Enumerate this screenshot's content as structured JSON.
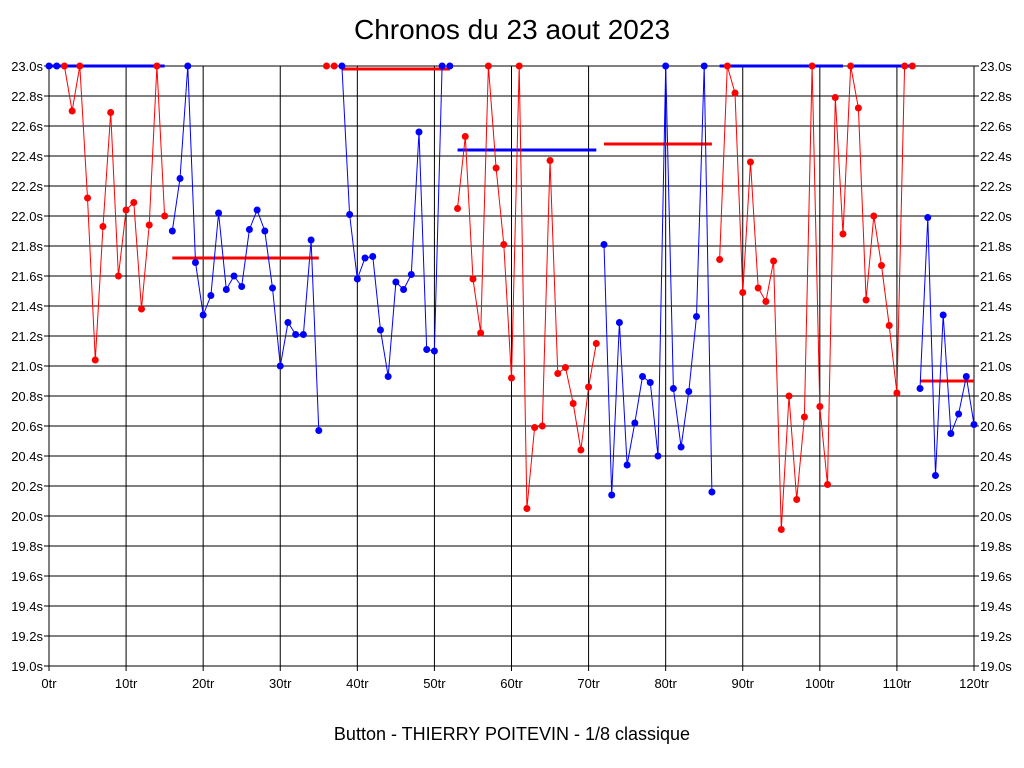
{
  "title": "Chronos du 23 aout 2023",
  "caption": "Button - THIERRY POITEVIN - 1/8 classique",
  "chart_data": {
    "type": "line",
    "xlim": [
      0,
      120
    ],
    "ylim": [
      19.0,
      23.0
    ],
    "x_ticks": [
      0,
      10,
      20,
      30,
      40,
      50,
      60,
      70,
      80,
      90,
      100,
      110,
      120
    ],
    "x_tick_labels": [
      "0tr",
      "10tr",
      "20tr",
      "30tr",
      "40tr",
      "50tr",
      "60tr",
      "70tr",
      "80tr",
      "90tr",
      "100tr",
      "110tr",
      "120tr"
    ],
    "y_ticks": [
      19.0,
      19.2,
      19.4,
      19.6,
      19.8,
      20.0,
      20.2,
      20.4,
      20.6,
      20.8,
      21.0,
      21.2,
      21.4,
      21.6,
      21.8,
      22.0,
      22.2,
      22.4,
      22.6,
      22.8,
      23.0
    ],
    "y_tick_labels": [
      "19.0s",
      "19.2s",
      "19.4s",
      "19.6s",
      "19.8s",
      "20.0s",
      "20.2s",
      "20.4s",
      "20.6s",
      "20.8s",
      "21.0s",
      "21.2s",
      "21.4s",
      "21.6s",
      "21.8s",
      "22.0s",
      "22.2s",
      "22.4s",
      "22.6s",
      "22.8s",
      "23.0s"
    ],
    "grid": true,
    "series": [
      {
        "color": "#0000ff",
        "x": [
          0,
          1
        ],
        "y": [
          23.0,
          23.0
        ]
      },
      {
        "color": "#ff0000",
        "x": [
          2,
          3,
          4,
          5,
          6,
          7,
          8,
          9,
          10,
          11,
          12,
          13,
          14,
          15
        ],
        "y": [
          23.0,
          22.7,
          23.0,
          22.12,
          21.04,
          21.93,
          22.69,
          21.6,
          22.04,
          22.09,
          21.38,
          21.94,
          23.0,
          22.0
        ]
      },
      {
        "color": "#0000ff",
        "x": [
          16,
          17,
          18,
          19,
          20,
          21,
          22,
          23,
          24,
          25,
          26,
          27,
          28,
          29,
          30,
          31,
          32,
          33,
          34,
          35
        ],
        "y": [
          21.9,
          22.25,
          23.0,
          21.69,
          21.34,
          21.47,
          22.02,
          21.51,
          21.6,
          21.53,
          21.91,
          22.04,
          21.9,
          21.52,
          21.0,
          21.29,
          21.21,
          21.21,
          21.84,
          20.57
        ]
      },
      {
        "color": "#ff0000",
        "x": [
          36,
          37
        ],
        "y": [
          23.0,
          23.0
        ]
      },
      {
        "color": "#0000ff",
        "x": [
          38,
          39,
          40,
          41,
          42,
          43,
          44,
          45,
          46,
          47,
          48,
          49,
          50,
          51,
          52
        ],
        "y": [
          23.0,
          22.01,
          21.58,
          21.72,
          21.73,
          21.24,
          20.93,
          21.56,
          21.51,
          21.61,
          22.56,
          21.11,
          21.1,
          23.0,
          23.0
        ]
      },
      {
        "color": "#ff0000",
        "x": [
          53,
          54,
          55,
          56,
          57,
          58,
          59,
          60,
          61,
          62,
          63,
          64,
          65,
          66,
          67,
          68,
          69,
          70,
          71
        ],
        "y": [
          22.05,
          22.53,
          21.58,
          21.22,
          23.0,
          22.32,
          21.81,
          20.92,
          23.0,
          20.05,
          20.59,
          20.6,
          22.37,
          20.95,
          20.99,
          20.75,
          20.44,
          20.86,
          21.15
        ]
      },
      {
        "color": "#0000ff",
        "x": [
          72,
          73,
          74,
          75,
          76,
          77,
          78,
          79,
          80,
          81,
          82,
          83,
          84,
          85,
          86
        ],
        "y": [
          21.81,
          20.14,
          21.29,
          20.34,
          20.62,
          20.93,
          20.89,
          20.4,
          23.0,
          20.85,
          20.46,
          20.83,
          21.33,
          23.0,
          20.16
        ]
      },
      {
        "color": "#ff0000",
        "x": [
          87,
          88,
          89,
          90,
          91,
          92,
          93,
          94,
          95,
          96,
          97,
          98,
          99,
          100,
          101,
          102,
          103,
          104,
          105,
          106,
          107,
          108,
          109,
          110,
          111,
          112
        ],
        "y": [
          21.71,
          23.0,
          22.82,
          21.49,
          22.36,
          21.52,
          21.43,
          21.7,
          19.91,
          20.8,
          20.11,
          20.66,
          23.0,
          20.73,
          20.21,
          22.79,
          21.88,
          23.0,
          22.72,
          21.44,
          22.0,
          21.67,
          21.27,
          20.82,
          23.0,
          23.0
        ]
      },
      {
        "color": "#0000ff",
        "x": [
          113,
          114,
          115,
          116,
          117,
          118,
          119,
          120
        ],
        "y": [
          20.85,
          21.99,
          20.27,
          21.34,
          20.55,
          20.68,
          20.93,
          20.61
        ]
      }
    ],
    "averages": [
      {
        "color": "#0000ff",
        "x": [
          0,
          15
        ],
        "y": 23.0
      },
      {
        "color": "#ff0000",
        "x": [
          16,
          35
        ],
        "y": 21.72
      },
      {
        "color": "#ff0000",
        "x": [
          38,
          52
        ],
        "y": 22.98
      },
      {
        "color": "#0000ff",
        "x": [
          53,
          71
        ],
        "y": 22.44
      },
      {
        "color": "#ff0000",
        "x": [
          72,
          86
        ],
        "y": 22.48
      },
      {
        "color": "#0000ff",
        "x": [
          87,
          103
        ],
        "y": 23.0
      },
      {
        "color": "#0000ff",
        "x": [
          104,
          112
        ],
        "y": 23.0
      },
      {
        "color": "#ff0000",
        "x": [
          113,
          120
        ],
        "y": 20.9
      }
    ]
  }
}
